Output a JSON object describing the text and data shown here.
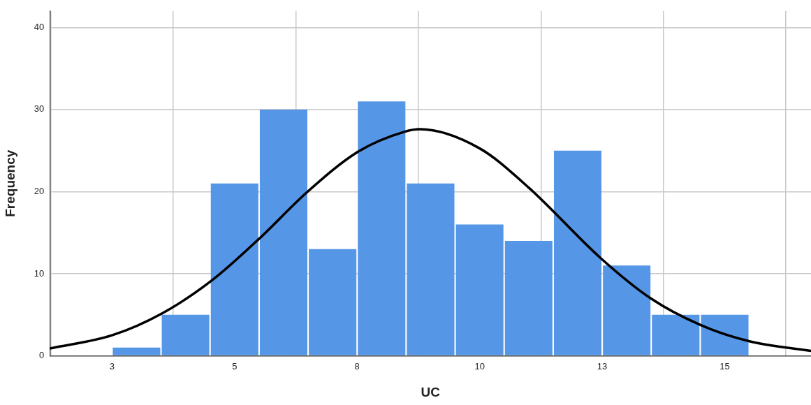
{
  "chart_data": {
    "type": "histogram",
    "xlabel": "UC",
    "ylabel": "Frequency",
    "bins": [
      2.5,
      3.5,
      4.5,
      5.5,
      6.5,
      7.5,
      8.5,
      9.5,
      10.5,
      11.5,
      12.5,
      13.5,
      14.5,
      15.5
    ],
    "values": [
      1,
      5,
      21,
      30,
      13,
      31,
      21,
      16,
      14,
      25,
      11,
      5,
      5
    ],
    "color": "#5596e6",
    "series": [
      {
        "type": "line",
        "color": "#000000",
        "x": [
          1.23,
          2.5,
          3.53,
          4.54,
          5.49,
          6.49,
          7.53,
          8.47,
          8.78,
          9.99,
          11.0,
          12.47,
          13.49,
          14.49,
          15.49,
          16.76
        ],
        "values": [
          0.9,
          2.5,
          5.2,
          9.2,
          14.2,
          20.0,
          24.9,
          27.3,
          27.6,
          25.3,
          20.5,
          11.9,
          7.0,
          3.8,
          1.8,
          0.6
        ]
      }
    ],
    "xlim": [
      1.23,
      16.76
    ],
    "xticks": [
      {
        "value": 2.5,
        "label": "3"
      },
      5,
      {
        "value": 7.5,
        "label": "8"
      },
      10,
      {
        "value": 12.5,
        "label": "13"
      },
      15
    ],
    "ylim": [
      0,
      42
    ],
    "yticks": [
      0,
      10,
      20,
      30,
      40
    ],
    "grid": true,
    "legend": false,
    "marker": "none",
    "line_style": "solid"
  }
}
